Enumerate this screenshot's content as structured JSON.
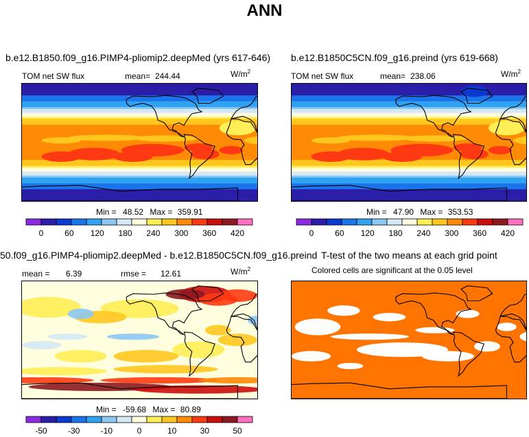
{
  "page_title": "ANN",
  "colors": {
    "scale": [
      "#8a2be2",
      "#2a1ea8",
      "#0a3ad2",
      "#1b74ea",
      "#2fa2f2",
      "#8cc8f4",
      "#d4e8f6",
      "#ffffe0",
      "#ffee55",
      "#ffc61e",
      "#ff8a05",
      "#ff3a12",
      "#cc0d0d",
      "#8c1a20",
      "#ff70c0"
    ],
    "signif": "#ff7300"
  },
  "chart_data": [
    {
      "type": "heatmap",
      "title": "b.e12.B1850.f09_g16.PIMP4-pliomip2.deepMed (yrs 617-646)",
      "left_label": "TOM net SW flux",
      "stat_label": "mean=",
      "stat_value": "244.44",
      "units": "W/m",
      "units_exp": "2",
      "min_label": "Min =",
      "min_value": "48.52",
      "max_label": "Max =",
      "max_value": "359.91",
      "colorbar_ticks": [
        "0",
        "60",
        "120",
        "180",
        "240",
        "300",
        "360",
        "420"
      ]
    },
    {
      "type": "heatmap",
      "title": "b.e12.B1850C5CN.f09_g16.preind (yrs 619-668)",
      "left_label": "TOM net SW flux",
      "stat_label": "mean=",
      "stat_value": "238.06",
      "units": "W/m",
      "units_exp": "2",
      "min_label": "Min =",
      "min_value": "47.90",
      "max_label": "Max =",
      "max_value": "353.53",
      "colorbar_ticks": [
        "0",
        "60",
        "120",
        "180",
        "240",
        "300",
        "360",
        "420"
      ]
    },
    {
      "type": "heatmap",
      "title": "50.f09_g16.PIMP4-pliomip2.deepMed - b.e12.B1850C5CN.f09_g16.preind",
      "left_label": "mean =",
      "left_value": "6.39",
      "stat_label": "rmse =",
      "stat_value": "12.61",
      "units": "W/m",
      "units_exp": "2",
      "min_label": "Min =",
      "min_value": "-59.68",
      "max_label": "Max =",
      "max_value": "80.89",
      "colorbar_ticks": [
        "-50",
        "-30",
        "-10",
        "0",
        "10",
        "30",
        "50"
      ]
    },
    {
      "type": "heatmap",
      "title": "T-test of the two means at each grid point",
      "subtitle": "Colored cells are significant at the 0.05 level"
    }
  ]
}
